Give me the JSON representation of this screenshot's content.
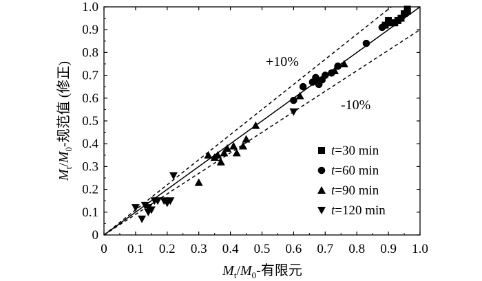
{
  "chart_data": {
    "type": "scatter",
    "xlim": [
      0,
      1.0
    ],
    "ylim": [
      0,
      1.0
    ],
    "xticks": [
      "0",
      "0.1",
      "0.2",
      "0.3",
      "0.4",
      "0.5",
      "0.6",
      "0.7",
      "0.8",
      "0.9",
      "1.0"
    ],
    "yticks": [
      "0",
      "0.1",
      "0.2",
      "0.3",
      "0.4",
      "0.5",
      "0.6",
      "0.7",
      "0.8",
      "0.9",
      "1.0"
    ],
    "xlabel": {
      "m1": "M",
      "s1": "t",
      "sep": "/",
      "m2": "M",
      "s2": "0",
      "tail": "-有限元"
    },
    "ylabel": {
      "m1": "M",
      "s1": "t",
      "sep": "/",
      "m2": "M",
      "s2": "0",
      "tail": "-规范值 (修正)"
    },
    "reference_lines": [
      {
        "kind": "solid",
        "slope": 1.0
      },
      {
        "kind": "dashed",
        "slope": 1.1,
        "label": "+10%"
      },
      {
        "kind": "dashed",
        "slope": 0.9,
        "label": "-10%"
      }
    ],
    "legend_position": "lower-right",
    "series": [
      {
        "prefix": "t",
        "name": "=30 min",
        "marker": "square",
        "points": [
          [
            0.89,
            0.92
          ],
          [
            0.9,
            0.94
          ],
          [
            0.91,
            0.93
          ],
          [
            0.92,
            0.93
          ],
          [
            0.93,
            0.94
          ],
          [
            0.94,
            0.95
          ],
          [
            0.95,
            0.97
          ],
          [
            0.96,
            0.98
          ],
          [
            0.96,
            0.99
          ]
        ]
      },
      {
        "prefix": "t",
        "name": "=60 min",
        "marker": "circle",
        "points": [
          [
            0.6,
            0.59
          ],
          [
            0.63,
            0.65
          ],
          [
            0.66,
            0.67
          ],
          [
            0.67,
            0.69
          ],
          [
            0.68,
            0.66
          ],
          [
            0.69,
            0.68
          ],
          [
            0.7,
            0.7
          ],
          [
            0.72,
            0.71
          ],
          [
            0.74,
            0.74
          ],
          [
            0.83,
            0.84
          ],
          [
            0.88,
            0.91
          ]
        ]
      },
      {
        "prefix": "t",
        "name": "=90 min",
        "marker": "triangle-up",
        "points": [
          [
            0.3,
            0.23
          ],
          [
            0.33,
            0.35
          ],
          [
            0.35,
            0.34
          ],
          [
            0.36,
            0.35
          ],
          [
            0.37,
            0.32
          ],
          [
            0.38,
            0.36
          ],
          [
            0.39,
            0.38
          ],
          [
            0.41,
            0.39
          ],
          [
            0.42,
            0.36
          ],
          [
            0.44,
            0.39
          ],
          [
            0.45,
            0.42
          ],
          [
            0.48,
            0.48
          ],
          [
            0.62,
            0.61
          ],
          [
            0.73,
            0.72
          ],
          [
            0.76,
            0.75
          ]
        ]
      },
      {
        "prefix": "t",
        "name": "=120 min",
        "marker": "triangle-down",
        "points": [
          [
            0.1,
            0.12
          ],
          [
            0.12,
            0.07
          ],
          [
            0.13,
            0.13
          ],
          [
            0.14,
            0.12
          ],
          [
            0.14,
            0.1
          ],
          [
            0.15,
            0.11
          ],
          [
            0.16,
            0.15
          ],
          [
            0.17,
            0.15
          ],
          [
            0.19,
            0.15
          ],
          [
            0.2,
            0.14
          ],
          [
            0.21,
            0.15
          ],
          [
            0.22,
            0.26
          ],
          [
            0.6,
            0.54
          ]
        ]
      }
    ]
  }
}
